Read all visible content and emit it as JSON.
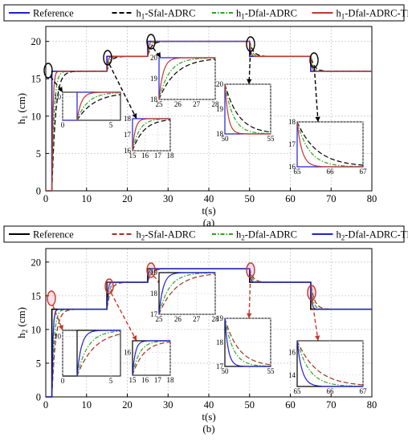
{
  "chart_data": [
    {
      "type": "line",
      "panel_label": "(a)",
      "xlabel": "t(s)",
      "ylabel_main": "h",
      "ylabel_sub": "1",
      "ylabel_unit": " (cm)",
      "xlim": [
        0,
        80
      ],
      "ylim": [
        0,
        22
      ],
      "xticks": [
        0,
        10,
        20,
        30,
        40,
        50,
        60,
        70,
        80
      ],
      "yticks": [
        0,
        5,
        10,
        15,
        20
      ],
      "grid": true,
      "legend_position": "top",
      "legend": [
        {
          "main": "Reference",
          "sub": "",
          "tail": "",
          "color": "#1f1fd6",
          "dash": "solid"
        },
        {
          "main": "h",
          "sub": "1",
          "tail": "-Sfal-ADRC",
          "color": "#000000",
          "dash": "dashed"
        },
        {
          "main": "h",
          "sub": "1",
          "tail": "-Dfal-ADRC",
          "color": "#2aa51c",
          "dash": "dashdot"
        },
        {
          "main": "h",
          "sub": "1",
          "tail": "-Dfal-ADRC-TD",
          "color": "#c0392b",
          "dash": "solid"
        }
      ],
      "reference": {
        "x": [
          0,
          1.5,
          1.5,
          15,
          15,
          25,
          25,
          50,
          50,
          65,
          65,
          80
        ],
        "y": [
          0,
          0,
          16,
          16,
          18,
          18,
          20,
          20,
          18,
          18,
          16,
          16
        ]
      },
      "insets": [
        {
          "xlim": [
            0,
            6
          ],
          "ylim": [
            0,
            12
          ],
          "xticks": [
            0,
            5
          ],
          "yticks": [
            10
          ],
          "steps": [
            [
              0,
              1.5,
              0,
              12
            ]
          ]
        },
        {
          "xlim": [
            15,
            18
          ],
          "ylim": [
            16,
            18
          ],
          "xticks": [
            15,
            16,
            17,
            18
          ],
          "yticks": [
            16,
            17,
            18
          ],
          "steps": [
            [
              15,
              15,
              16,
              18
            ]
          ]
        },
        {
          "xlim": [
            25,
            28
          ],
          "ylim": [
            18,
            20
          ],
          "xticks": [
            25,
            26,
            27,
            28
          ],
          "yticks": [
            18,
            19,
            20
          ],
          "steps": [
            [
              25,
              25,
              18,
              20
            ]
          ]
        },
        {
          "xlim": [
            50,
            55
          ],
          "ylim": [
            18,
            20
          ],
          "xticks": [
            50,
            55
          ],
          "yticks": [
            18,
            19,
            20
          ],
          "steps": [
            [
              50,
              50,
              20,
              18
            ]
          ]
        },
        {
          "xlim": [
            65,
            67
          ],
          "ylim": [
            16,
            18
          ],
          "xticks": [
            65,
            66,
            67
          ],
          "yticks": [
            16,
            17,
            18
          ],
          "steps": [
            [
              65,
              65,
              18,
              16
            ]
          ]
        }
      ]
    },
    {
      "type": "line",
      "panel_label": "(b)",
      "xlabel": "t(s)",
      "ylabel_main": "h",
      "ylabel_sub": "2",
      "ylabel_unit": " (cm)",
      "xlim": [
        0,
        80
      ],
      "ylim": [
        0,
        22
      ],
      "xticks": [
        0,
        10,
        20,
        30,
        40,
        50,
        60,
        70,
        80
      ],
      "yticks": [
        0,
        5,
        10,
        15,
        20
      ],
      "grid": true,
      "legend_position": "top",
      "legend": [
        {
          "main": "Reference",
          "sub": "",
          "tail": "",
          "color": "#000000",
          "dash": "solid"
        },
        {
          "main": "h",
          "sub": "2",
          "tail": "-Sfal-ADRC",
          "color": "#a0331e",
          "dash": "dashed"
        },
        {
          "main": "h",
          "sub": "2",
          "tail": "-Dfal-ADRC",
          "color": "#2aa51c",
          "dash": "dashdot"
        },
        {
          "main": "h",
          "sub": "2",
          "tail": "-Dfal-ADRC-TD",
          "color": "#1f1fd6",
          "dash": "solid"
        }
      ],
      "reference": {
        "x": [
          0,
          1.5,
          1.5,
          15,
          15,
          25,
          25,
          50,
          50,
          65,
          65,
          80
        ],
        "y": [
          0,
          0,
          13,
          13,
          17,
          17,
          19,
          19,
          17,
          17,
          13,
          13
        ]
      },
      "insets": [
        {
          "xlim": [
            0,
            6
          ],
          "ylim": [
            0,
            11.5
          ],
          "xticks": [
            0,
            5
          ],
          "yticks": [
            10
          ],
          "steps": [
            [
              0,
              1.5,
              0,
              11.5
            ]
          ]
        },
        {
          "xlim": [
            15,
            18
          ],
          "ylim": [
            14,
            17
          ],
          "xticks": [
            15,
            16,
            17,
            18
          ],
          "yticks": [
            16
          ],
          "steps": [
            [
              15,
              15,
              14,
              17
            ]
          ]
        },
        {
          "xlim": [
            25,
            28
          ],
          "ylim": [
            17,
            19
          ],
          "xticks": [
            25,
            26,
            27,
            28
          ],
          "yticks": [
            17,
            18,
            19
          ],
          "steps": [
            [
              25,
              25,
              17,
              19
            ]
          ]
        },
        {
          "xlim": [
            50,
            55
          ],
          "ylim": [
            17,
            19
          ],
          "xticks": [
            50,
            55
          ],
          "yticks": [
            17,
            18,
            19
          ],
          "steps": [
            [
              50,
              50,
              19,
              17
            ]
          ]
        },
        {
          "xlim": [
            65,
            67
          ],
          "ylim": [
            13,
            17
          ],
          "xticks": [
            65,
            66,
            67
          ],
          "yticks": [
            14,
            16
          ],
          "steps": [
            [
              65,
              65,
              17,
              13
            ]
          ]
        }
      ]
    }
  ]
}
